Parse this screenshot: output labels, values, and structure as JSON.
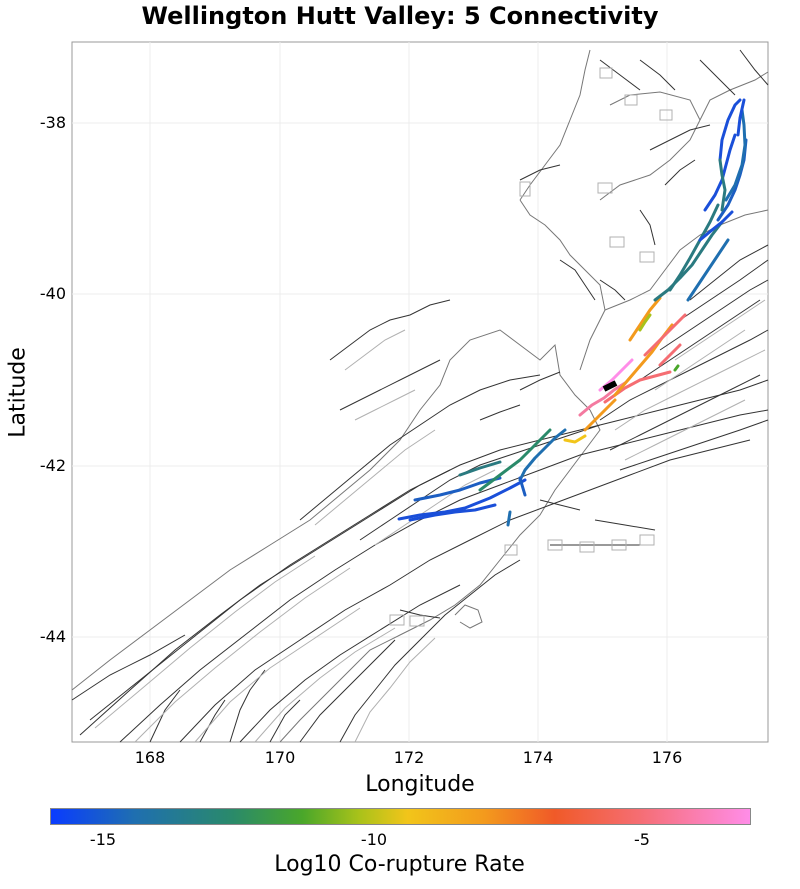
{
  "title": "Wellington Hutt Valley: 5 Connectivity",
  "axes": {
    "xlabel": "Longitude",
    "ylabel": "Latitude",
    "xticks": [
      "168",
      "170",
      "172",
      "174",
      "176"
    ],
    "yticks": [
      "-38",
      "-40",
      "-42",
      "-44"
    ]
  },
  "colorbar": {
    "label": "Log10 Co-rupture Rate",
    "ticks": [
      "-15",
      "-10",
      "-5"
    ],
    "colors": [
      "#0a3cff",
      "#1f6fb0",
      "#2a8a6a",
      "#4aa72a",
      "#f2c51a",
      "#f39a1d",
      "#f05a28",
      "#f56d72",
      "#ff8de8"
    ]
  }
}
